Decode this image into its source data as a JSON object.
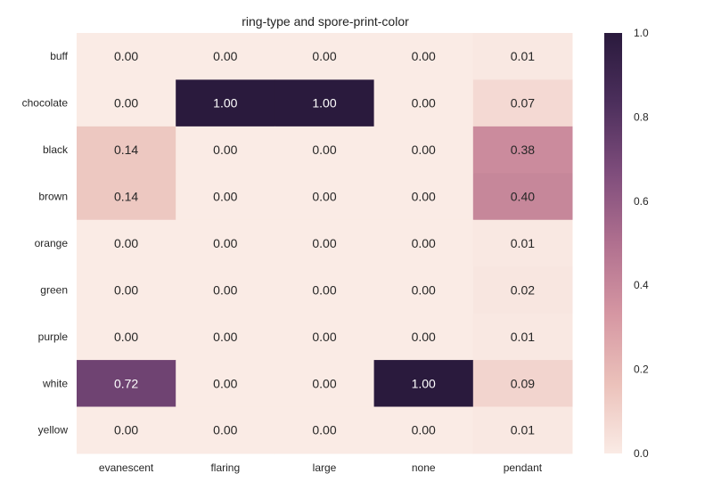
{
  "chart_data": {
    "type": "heatmap",
    "title": "ring-type and spore-print-color",
    "x_categories": [
      "evanescent",
      "flaring",
      "large",
      "none",
      "pendant"
    ],
    "y_categories": [
      "buff",
      "chocolate",
      "black",
      "brown",
      "orange",
      "green",
      "purple",
      "white",
      "yellow"
    ],
    "values": [
      [
        0.0,
        0.0,
        0.0,
        0.0,
        0.01
      ],
      [
        0.0,
        1.0,
        1.0,
        0.0,
        0.07
      ],
      [
        0.14,
        0.0,
        0.0,
        0.0,
        0.38
      ],
      [
        0.14,
        0.0,
        0.0,
        0.0,
        0.4
      ],
      [
        0.0,
        0.0,
        0.0,
        0.0,
        0.01
      ],
      [
        0.0,
        0.0,
        0.0,
        0.0,
        0.02
      ],
      [
        0.0,
        0.0,
        0.0,
        0.0,
        0.01
      ],
      [
        0.72,
        0.0,
        0.0,
        1.0,
        0.09
      ],
      [
        0.0,
        0.0,
        0.0,
        0.0,
        0.01
      ]
    ],
    "value_format": "0.00",
    "colorbar": {
      "range": [
        0,
        1
      ],
      "ticks": [
        0.0,
        0.2,
        0.4,
        0.6,
        0.8,
        1.0
      ],
      "tick_labels": [
        "0.0",
        "0.2",
        "0.4",
        "0.6",
        "0.8",
        "1.0"
      ]
    },
    "colormap": [
      "#faebe5",
      "#ebc1ba",
      "#d596a2",
      "#b0708f",
      "#7f4d7c",
      "#4c2f5c",
      "#2a1a3d"
    ]
  }
}
